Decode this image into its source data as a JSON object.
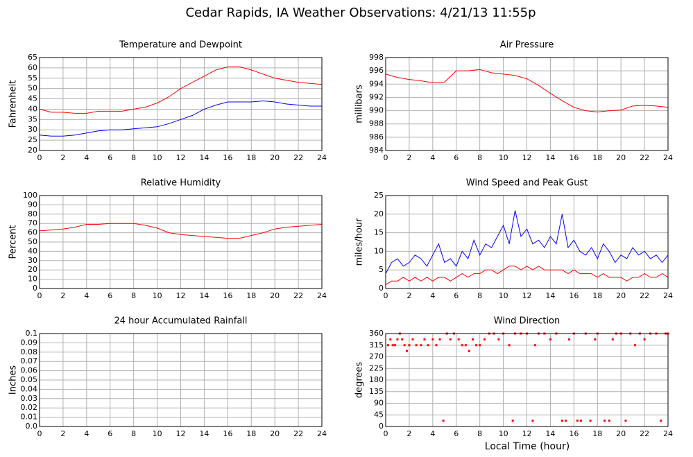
{
  "title": "Cedar Rapids, IA Weather Observations: 4/21/13 11:55p",
  "xlabel": "Local Time (hour)",
  "chart_data": [
    {
      "type": "line",
      "title": "Temperature and Dewpoint",
      "ylabel": "Fahrenheit",
      "x": [
        0,
        1,
        2,
        3,
        4,
        5,
        6,
        7,
        8,
        9,
        10,
        11,
        12,
        13,
        14,
        15,
        16,
        17,
        18,
        19,
        20,
        21,
        22,
        23,
        24
      ],
      "series": [
        {
          "color": "#ff0000",
          "values": [
            40,
            38.5,
            38.5,
            38,
            38,
            39,
            39,
            39,
            40,
            41,
            43,
            46,
            50,
            53,
            56,
            59,
            60.5,
            60.5,
            59,
            57,
            55,
            54,
            53,
            52.5,
            52
          ]
        },
        {
          "color": "#0000ff",
          "values": [
            27.5,
            27,
            27,
            27.5,
            28.5,
            29.5,
            30,
            30,
            30.5,
            31,
            31.5,
            33,
            35,
            37,
            40,
            42,
            43.5,
            43.5,
            43.5,
            44,
            43.5,
            42.5,
            42,
            41.5,
            41.5
          ]
        }
      ],
      "xlim": [
        0,
        24
      ],
      "xticks": [
        0,
        2,
        4,
        6,
        8,
        10,
        12,
        14,
        16,
        18,
        20,
        22,
        24
      ],
      "ylim": [
        20,
        65
      ],
      "yticks": [
        20,
        25,
        30,
        35,
        40,
        45,
        50,
        55,
        60,
        65
      ],
      "grid": true
    },
    {
      "type": "line",
      "title": "Air Pressure",
      "ylabel": "millibars",
      "x": [
        0,
        1,
        2,
        3,
        4,
        5,
        6,
        7,
        8,
        9,
        10,
        11,
        12,
        13,
        14,
        15,
        16,
        17,
        18,
        19,
        20,
        21,
        22,
        23,
        24
      ],
      "series": [
        {
          "color": "#ff0000",
          "values": [
            995.5,
            995,
            994.7,
            994.5,
            994.2,
            994.3,
            996,
            996,
            996.2,
            995.7,
            995.5,
            995.3,
            994.8,
            993.8,
            992.6,
            991.5,
            990.5,
            990,
            989.8,
            990,
            990.1,
            990.7,
            990.8,
            990.7,
            990.5
          ]
        }
      ],
      "xlim": [
        0,
        24
      ],
      "xticks": [
        0,
        2,
        4,
        6,
        8,
        10,
        12,
        14,
        16,
        18,
        20,
        22,
        24
      ],
      "ylim": [
        984,
        998
      ],
      "yticks": [
        984,
        986,
        988,
        990,
        992,
        994,
        996,
        998
      ],
      "grid": true
    },
    {
      "type": "line",
      "title": "Relative Humidity",
      "ylabel": "Percent",
      "x": [
        0,
        1,
        2,
        3,
        4,
        5,
        6,
        7,
        8,
        9,
        10,
        11,
        12,
        13,
        14,
        15,
        16,
        17,
        18,
        19,
        20,
        21,
        22,
        23,
        24
      ],
      "series": [
        {
          "color": "#ff0000",
          "values": [
            62,
            63,
            64,
            66,
            69,
            69,
            70,
            70,
            70,
            68,
            65,
            60,
            58,
            57,
            56,
            55,
            54,
            54,
            57,
            60,
            64,
            66,
            67,
            68,
            69
          ]
        }
      ],
      "xlim": [
        0,
        24
      ],
      "xticks": [
        0,
        2,
        4,
        6,
        8,
        10,
        12,
        14,
        16,
        18,
        20,
        22,
        24
      ],
      "ylim": [
        0,
        100
      ],
      "yticks": [
        0,
        10,
        20,
        30,
        40,
        50,
        60,
        70,
        80,
        90,
        100
      ],
      "grid": true
    },
    {
      "type": "line",
      "title": "Wind Speed and Peak Gust",
      "ylabel": "miles/hour",
      "x": [
        0,
        0.5,
        1,
        1.5,
        2,
        2.5,
        3,
        3.5,
        4,
        4.5,
        5,
        5.5,
        6,
        6.5,
        7,
        7.5,
        8,
        8.5,
        9,
        9.5,
        10,
        10.5,
        11,
        11.5,
        12,
        12.5,
        13,
        13.5,
        14,
        14.5,
        15,
        15.5,
        16,
        16.5,
        17,
        17.5,
        18,
        18.5,
        19,
        19.5,
        20,
        20.5,
        21,
        21.5,
        22,
        22.5,
        23,
        23.5,
        24
      ],
      "series": [
        {
          "color": "#0000ff",
          "values": [
            4,
            7,
            8,
            6,
            7,
            9,
            8,
            6,
            9,
            12,
            7,
            8,
            6,
            10,
            8,
            13,
            9,
            12,
            11,
            14,
            17,
            12,
            21,
            14,
            16,
            12,
            13,
            11,
            14,
            12,
            20,
            11,
            13,
            10,
            9,
            11,
            8,
            12,
            10,
            7,
            9,
            8,
            11,
            9,
            10,
            8,
            9,
            7,
            9
          ]
        },
        {
          "color": "#ff0000",
          "values": [
            1,
            2,
            2,
            3,
            2,
            3,
            2,
            3,
            2,
            3,
            3,
            2,
            3,
            4,
            3,
            4,
            4,
            5,
            5,
            4,
            5,
            6,
            6,
            5,
            6,
            5,
            6,
            5,
            5,
            5,
            5,
            4,
            5,
            4,
            4,
            4,
            3,
            4,
            3,
            3,
            3,
            2,
            3,
            3,
            4,
            3,
            3,
            4,
            3
          ]
        }
      ],
      "xlim": [
        0,
        24
      ],
      "xticks": [
        0,
        2,
        4,
        6,
        8,
        10,
        12,
        14,
        16,
        18,
        20,
        22,
        24
      ],
      "ylim": [
        0,
        25
      ],
      "yticks": [
        0,
        5,
        10,
        15,
        20,
        25
      ],
      "grid": true
    },
    {
      "type": "line",
      "title": "24 hour Accumulated Rainfall",
      "ylabel": "Inches",
      "x": [
        0,
        2,
        4,
        6,
        8,
        10,
        12,
        14,
        16,
        18,
        20,
        22,
        24
      ],
      "series": [
        {
          "color": "#ff0000",
          "values": [
            0,
            0,
            0,
            0,
            0,
            0,
            0,
            0,
            0,
            0,
            0,
            0,
            0
          ]
        }
      ],
      "xlim": [
        0,
        24
      ],
      "xticks": [
        0,
        2,
        4,
        6,
        8,
        10,
        12,
        14,
        16,
        18,
        20,
        22,
        24
      ],
      "ylim": [
        0,
        0.1
      ],
      "yticks": [
        {
          "value": 0,
          "label": "0.0"
        },
        0.01,
        0.02,
        0.03,
        0.04,
        0.05,
        0.06,
        0.07,
        0.08,
        0.09,
        0.1
      ],
      "grid": true
    },
    {
      "type": "scatter",
      "title": "Wind Direction",
      "ylabel": "degrees",
      "x": [
        0.2,
        0.4,
        0.6,
        0.8,
        1,
        1.2,
        1.4,
        1.6,
        1.8,
        2,
        2.3,
        2.6,
        3,
        3.3,
        3.6,
        4,
        4.3,
        4.6,
        4.9,
        5.2,
        5.5,
        5.8,
        6.2,
        6.5,
        6.8,
        7.1,
        7.4,
        7.7,
        8,
        8.4,
        8.8,
        9.2,
        9.6,
        10,
        10.5,
        10.8,
        11,
        11.5,
        12,
        12.5,
        12.7,
        13,
        13.5,
        14,
        14.5,
        15,
        15.3,
        15.6,
        16,
        16.3,
        16.6,
        17,
        17.4,
        17.8,
        18,
        18.6,
        19,
        19.3,
        19.6,
        20,
        20.4,
        20.8,
        21.2,
        21.6,
        22,
        22.5,
        23,
        23.4,
        23.8,
        24
      ],
      "series": [
        {
          "color": "#ff0000",
          "values": [
            315,
            337.5,
            315,
            315,
            337.5,
            360,
            337.5,
            315,
            292.5,
            315,
            337.5,
            315,
            315,
            337.5,
            315,
            337.5,
            315,
            337.5,
            22.5,
            360,
            337.5,
            360,
            337.5,
            315,
            315,
            292.5,
            337.5,
            315,
            315,
            337.5,
            360,
            360,
            337.5,
            360,
            315,
            22.5,
            360,
            360,
            360,
            22.5,
            315,
            360,
            360,
            337.5,
            360,
            22.5,
            22.5,
            337.5,
            360,
            22.5,
            22.5,
            360,
            22.5,
            337.5,
            360,
            22.5,
            22.5,
            337.5,
            360,
            360,
            22.5,
            360,
            315,
            360,
            337.5,
            360,
            360,
            22.5,
            360,
            360
          ]
        }
      ],
      "xlim": [
        0,
        24
      ],
      "xticks": [
        0,
        2,
        4,
        6,
        8,
        10,
        12,
        14,
        16,
        18,
        20,
        22,
        24
      ],
      "ylim": [
        0,
        360
      ],
      "yticks": [
        0,
        45,
        90,
        135,
        180,
        225,
        270,
        315,
        360
      ],
      "grid": true
    }
  ]
}
